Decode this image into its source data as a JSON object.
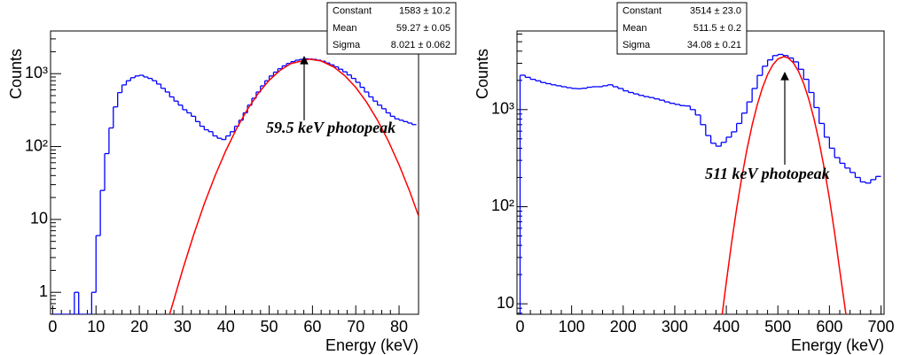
{
  "chart_data": [
    {
      "type": "histogram",
      "xlabel": "Energy (keV)",
      "ylabel": "Counts",
      "color": "#0000ff",
      "log_y": true,
      "xlim": [
        -0.5,
        84.5
      ],
      "ylim": [
        0.5,
        3850
      ],
      "xticks": [
        0,
        10,
        20,
        30,
        40,
        50,
        60,
        70,
        80
      ],
      "yticks": [
        1,
        10,
        {
          "value": 100,
          "label": "10²"
        },
        {
          "value": 1000,
          "label": "10³"
        }
      ],
      "bins": [
        0,
        1,
        2,
        3,
        4,
        5,
        6,
        7,
        8,
        9,
        10,
        11,
        12,
        13,
        14,
        15,
        16,
        17,
        18,
        19,
        20,
        21,
        22,
        23,
        24,
        25,
        26,
        27,
        28,
        29,
        30,
        31,
        32,
        33,
        34,
        35,
        36,
        37,
        38,
        39,
        40,
        41,
        42,
        43,
        44,
        45,
        46,
        47,
        48,
        49,
        50,
        51,
        52,
        53,
        54,
        55,
        56,
        57,
        58,
        59,
        60,
        61,
        62,
        63,
        64,
        65,
        66,
        67,
        68,
        69,
        70,
        71,
        72,
        73,
        74,
        75,
        76,
        77,
        78,
        79,
        80,
        81,
        82,
        83,
        84
      ],
      "values": [
        0,
        0,
        0,
        0,
        0,
        1,
        0,
        0,
        0,
        1,
        6,
        25,
        80,
        180,
        350,
        550,
        700,
        800,
        880,
        930,
        950,
        900,
        860,
        800,
        720,
        630,
        560,
        480,
        420,
        370,
        320,
        290,
        260,
        220,
        190,
        170,
        160,
        140,
        130,
        125,
        140,
        160,
        190,
        230,
        290,
        370,
        460,
        560,
        680,
        800,
        930,
        1050,
        1170,
        1280,
        1380,
        1460,
        1530,
        1570,
        1600,
        1590,
        1570,
        1530,
        1480,
        1400,
        1320,
        1240,
        1150,
        1060,
        960,
        860,
        760,
        650,
        560,
        480,
        420,
        370,
        330,
        290,
        260,
        240,
        230,
        220,
        210,
        200
      ],
      "fit": {
        "color": "#ff0000",
        "x": [
          27,
          28,
          30,
          32.5,
          35,
          37.5,
          40,
          42.5,
          45,
          47.5,
          50,
          52.5,
          55,
          59.27,
          62,
          65,
          67.5,
          70,
          72.5,
          75,
          77.5,
          80,
          82.5,
          84.5
        ],
        "values": [
          0.48,
          0.79,
          2.03,
          6.03,
          16.3,
          39.8,
          88.3,
          178,
          325,
          539,
          812,
          1108,
          1374,
          1583,
          1494,
          1227,
          935,
          647,
          406,
          231,
          120,
          56.2,
          23.9,
          11.2
        ]
      },
      "stats": [
        {
          "name": "Constant",
          "value": "1583 ± 10.2"
        },
        {
          "name": "Mean",
          "value": "59.27 ± 0.05"
        },
        {
          "name": "Sigma",
          "value": "8.021 ± 0.062"
        }
      ],
      "annotation": "59.5 keV photopeak"
    },
    {
      "type": "histogram",
      "xlabel": "Energy (keV)",
      "ylabel": "Counts",
      "color": "#0000ff",
      "log_y": true,
      "xlim": [
        -6,
        706
      ],
      "ylim": [
        7.8,
        6450
      ],
      "xticks": [
        0,
        100,
        200,
        300,
        400,
        500,
        600,
        700
      ],
      "yticks": [
        10,
        {
          "value": 100,
          "label": "10²"
        },
        {
          "value": 1000,
          "label": "10³"
        }
      ],
      "bins": [
        0,
        10,
        20,
        30,
        40,
        50,
        60,
        70,
        80,
        90,
        100,
        110,
        120,
        130,
        140,
        150,
        160,
        170,
        180,
        190,
        200,
        210,
        220,
        230,
        240,
        250,
        260,
        270,
        280,
        290,
        300,
        310,
        320,
        330,
        340,
        350,
        360,
        370,
        380,
        390,
        400,
        410,
        420,
        430,
        440,
        450,
        460,
        470,
        480,
        490,
        500,
        510,
        520,
        530,
        540,
        550,
        560,
        570,
        580,
        590,
        600,
        610,
        620,
        630,
        640,
        650,
        660,
        670,
        680,
        690,
        700
      ],
      "values": [
        2260,
        2150,
        2050,
        1980,
        1900,
        1850,
        1800,
        1760,
        1720,
        1680,
        1650,
        1640,
        1660,
        1700,
        1720,
        1720,
        1760,
        1800,
        1720,
        1650,
        1560,
        1500,
        1450,
        1400,
        1360,
        1330,
        1290,
        1250,
        1200,
        1160,
        1130,
        1100,
        1090,
        1000,
        880,
        700,
        540,
        450,
        420,
        460,
        520,
        590,
        720,
        920,
        1200,
        1650,
        2250,
        2800,
        3250,
        3600,
        3700,
        3600,
        3400,
        3100,
        2600,
        2050,
        1500,
        1050,
        720,
        520,
        400,
        320,
        280,
        250,
        225,
        200,
        180,
        175,
        190,
        205
      ],
      "fit": {
        "color": "#ff0000",
        "x": [
          392,
          400,
          410,
          420,
          430,
          440,
          450,
          460,
          470,
          480,
          490,
          500,
          511.5,
          520,
          530,
          540,
          550,
          560,
          570,
          580,
          590,
          600,
          610,
          620,
          632
        ],
        "values": [
          7.5,
          16.7,
          41.7,
          95.6,
          201,
          389,
          690,
          1122,
          1674,
          2292,
          2880,
          3320,
          3514,
          3406,
          3033,
          2477,
          1857,
          1277,
          806,
          466,
          247,
          121,
          53.9,
          22.1,
          6.8
        ]
      },
      "stats": [
        {
          "name": "Constant",
          "value": "3514 ± 23.0"
        },
        {
          "name": "Mean",
          "value": "511.5 ± 0.2"
        },
        {
          "name": "Sigma",
          "value": "34.08 ± 0.21"
        }
      ],
      "annotation": "511 keV photopeak"
    }
  ]
}
